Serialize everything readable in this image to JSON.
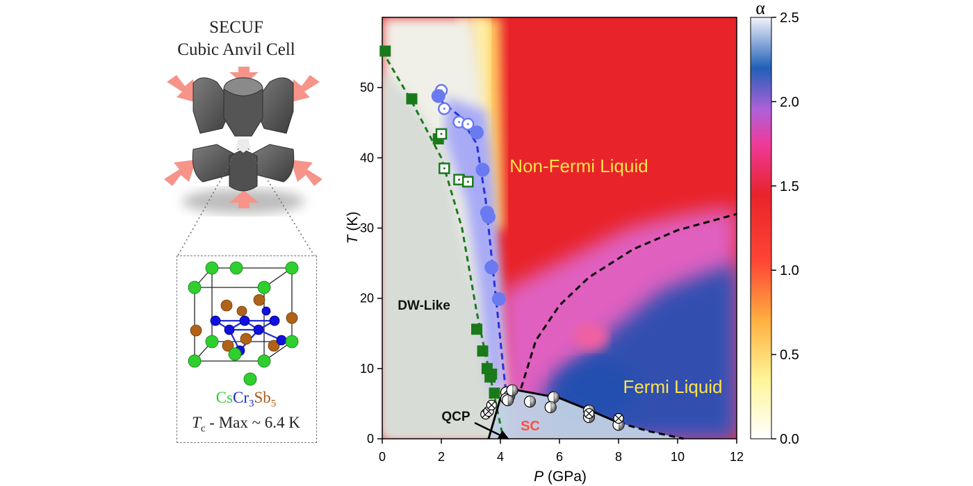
{
  "illustration": {
    "title_line1": "SECUF",
    "title_line2": "Cubic Anvil Cell",
    "formula": {
      "cs": "Cs",
      "cr": "Cr",
      "cr_sub": "3",
      "sb": "Sb",
      "sb_sub": "5"
    },
    "tc_text": {
      "t": "T",
      "sub": "c",
      "rest": " - Max ~ 6.4 K"
    }
  },
  "chart_data": {
    "type": "scatter",
    "title": "",
    "xlabel": "P (GPa)",
    "ylabel": "T (K)",
    "xlabel_italic": "P",
    "xlabel_rest": " (GPa)",
    "ylabel_italic": "T",
    "ylabel_rest": " (K)",
    "xlim": [
      0,
      12
    ],
    "ylim": [
      0,
      60
    ],
    "xticks": [
      0,
      2,
      4,
      6,
      8,
      10,
      12
    ],
    "yticks": [
      0,
      10,
      20,
      30,
      40,
      50
    ],
    "colorbar": {
      "label": "α",
      "range": [
        0.0,
        2.5
      ],
      "ticks": [
        "0.0",
        "0.5",
        "1.0",
        "1.5",
        "2.0",
        "2.5"
      ]
    },
    "regions": {
      "dw": "DW-Like",
      "nfl": "Non-Fermi Liquid",
      "fl": "Fermi Liquid",
      "sc": "SC",
      "qcp": "QCP"
    },
    "colors": {
      "green": "#1a7a1a",
      "blue": "#2233dd",
      "circle": "#6a7af0",
      "nfl_text": "#ffe44a",
      "sc_text": "#ff5040"
    },
    "series": [
      {
        "name": "green filled squares",
        "x": [
          0.1,
          1.0,
          1.9,
          3.2,
          3.4,
          3.55,
          3.65,
          3.7,
          3.8
        ],
        "y": [
          55.2,
          48.4,
          42.7,
          15.6,
          12.5,
          10.0,
          8.8,
          9.2,
          6.5
        ]
      },
      {
        "name": "green open squares",
        "x": [
          2.0,
          2.1,
          2.6,
          2.9
        ],
        "y": [
          43.4,
          38.5,
          36.9,
          36.6
        ]
      },
      {
        "name": "blue open circles",
        "x": [
          2.0,
          2.1,
          2.6,
          2.9
        ],
        "y": [
          49.6,
          47.0,
          45.1,
          44.8
        ]
      },
      {
        "name": "blue filled circles",
        "x": [
          1.9,
          3.2,
          3.4,
          3.55,
          3.6,
          3.7,
          3.95
        ],
        "y": [
          48.8,
          43.6,
          38.3,
          32.2,
          31.6,
          24.4,
          19.9
        ]
      },
      {
        "name": "SC half-filled circles",
        "x": [
          4.2,
          4.3,
          4.2,
          4.25,
          4.4,
          5.0,
          5.8,
          5.7,
          7.0,
          7.0,
          8.0
        ],
        "y": [
          6.6,
          6.1,
          5.7,
          5.5,
          6.9,
          5.3,
          5.9,
          4.5,
          4.0,
          3.1,
          2.0
        ]
      },
      {
        "name": "SC crossed circles",
        "x": [
          3.5,
          3.6,
          3.7,
          7.0,
          8.0
        ],
        "y": [
          3.5,
          3.9,
          4.8,
          3.6,
          2.9
        ]
      }
    ],
    "boundaries": [
      {
        "name": "green dashed DW",
        "x": [
          0.0,
          1.0,
          2.0,
          2.7,
          3.2,
          3.6,
          3.9,
          4.1
        ],
        "y": [
          55.2,
          48.0,
          40.0,
          30.0,
          18.0,
          10.0,
          4.0,
          0.0
        ]
      },
      {
        "name": "blue dashed T*",
        "x": [
          1.9,
          2.6,
          3.2,
          3.5,
          3.8,
          4.1,
          4.2
        ],
        "y": [
          48.4,
          46.0,
          42.0,
          34.0,
          22.0,
          10.0,
          6.2
        ]
      },
      {
        "name": "black solid SC dome",
        "x": [
          3.6,
          4.0,
          4.6,
          6.0,
          7.0,
          8.0
        ],
        "y": [
          0.0,
          5.8,
          6.9,
          5.8,
          4.1,
          2.3
        ]
      },
      {
        "name": "black dashed SC",
        "x": [
          8.0,
          9.0,
          10.2
        ],
        "y": [
          2.3,
          1.1,
          0.0
        ]
      },
      {
        "name": "black dashed FL",
        "x": [
          4.7,
          5.2,
          6.0,
          7.0,
          8.5,
          10.0,
          12.0
        ],
        "y": [
          7.2,
          14.0,
          19.0,
          23.0,
          27.0,
          29.7,
          32.0
        ]
      }
    ]
  }
}
